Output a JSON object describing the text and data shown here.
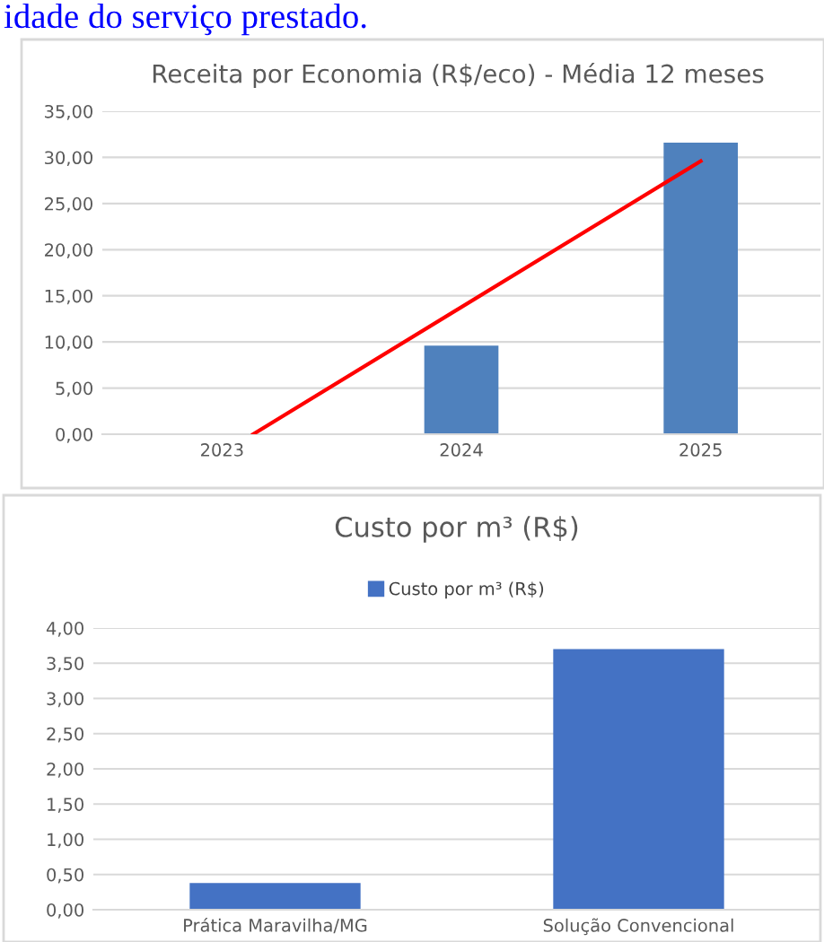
{
  "chart_data": [
    {
      "type": "bar",
      "title": "Receita por Economia (R$/eco) - Média 12 meses",
      "annotations": [
        "idade do serviço prestado."
      ],
      "x": [
        2023,
        2024,
        2025
      ],
      "xlim": [
        2022.5,
        2025.5
      ],
      "xticks": [
        2023,
        2024,
        2025
      ],
      "series": [
        {
          "color": "#4f81bd",
          "values": [
            0,
            9.6,
            31.6
          ]
        },
        {
          "type": "line",
          "color": "#ff0000",
          "x": [
            2023.13,
            2025
          ],
          "values": [
            0,
            29.6
          ]
        }
      ],
      "ylim": [
        0,
        35
      ],
      "yticks": [
        {
          "value": 0,
          "label": "0,00"
        },
        {
          "value": 5,
          "label": "5,00"
        },
        {
          "value": 10,
          "label": "10,00"
        },
        {
          "value": 15,
          "label": "15,00"
        },
        {
          "value": 20,
          "label": "20,00"
        },
        {
          "value": 25,
          "label": "25,00"
        },
        {
          "value": 30,
          "label": "30,00"
        },
        {
          "value": 35,
          "label": "35,00"
        }
      ],
      "grid": "y",
      "legend": false
    },
    {
      "type": "bar",
      "title": "Custo por m³ (R$)",
      "categories": [
        "Prática Maravilha/MG",
        "Solução Convencional"
      ],
      "series": [
        {
          "name": "Custo por m³ (R$)",
          "color": "#4472c4",
          "values": [
            0.38,
            3.7
          ]
        }
      ],
      "ylim": [
        0,
        4
      ],
      "yticks": [
        {
          "value": 0,
          "label": "0,00"
        },
        {
          "value": 0.5,
          "label": "0,50"
        },
        {
          "value": 1,
          "label": "1,00"
        },
        {
          "value": 1.5,
          "label": "1,50"
        },
        {
          "value": 2,
          "label": "2,00"
        },
        {
          "value": 2.5,
          "label": "2,50"
        },
        {
          "value": 3,
          "label": "3,00"
        },
        {
          "value": 3.5,
          "label": "3,50"
        },
        {
          "value": 4,
          "label": "4,00"
        }
      ],
      "grid": "y",
      "legend": "top"
    }
  ]
}
